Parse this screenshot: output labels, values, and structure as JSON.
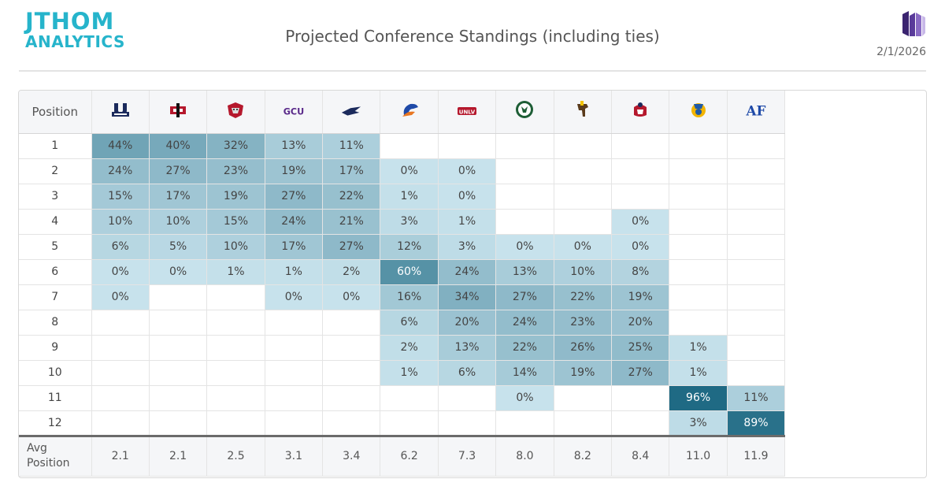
{
  "header": {
    "logo_line1": "JTHOM",
    "logo_line2": "ANALYTICS",
    "title": "Projected Conference Standings (including ties)",
    "date": "2/1/2026"
  },
  "table": {
    "position_header": "Position",
    "avg_label": "Avg Position",
    "teams": [
      {
        "icon": "utah-state-logo",
        "color": "#1b2a5c"
      },
      {
        "icon": "san-diego-state-logo",
        "color": "#b5182d"
      },
      {
        "icon": "new-mexico-logo",
        "color": "#b5182d"
      },
      {
        "icon": "gcu-logo",
        "color": "#5a2a8a"
      },
      {
        "icon": "nevada-logo",
        "color": "#1b2a5c"
      },
      {
        "icon": "boise-state-logo",
        "color": "#1f4aa8"
      },
      {
        "icon": "unlv-logo",
        "color": "#b5182d"
      },
      {
        "icon": "colorado-state-logo",
        "color": "#1e5e36"
      },
      {
        "icon": "wyoming-logo",
        "color": "#5a3b1b"
      },
      {
        "icon": "fresno-state-logo",
        "color": "#b5182d"
      },
      {
        "icon": "san-jose-state-logo",
        "color": "#1f5aa8"
      },
      {
        "icon": "air-force-logo",
        "color": "#1f4aa8"
      }
    ],
    "rows": [
      {
        "pos": "1",
        "cells": [
          "44%",
          "40%",
          "32%",
          "13%",
          "11%",
          "",
          "",
          "",
          "",
          "",
          "",
          ""
        ]
      },
      {
        "pos": "2",
        "cells": [
          "24%",
          "27%",
          "23%",
          "19%",
          "17%",
          "0%",
          "0%",
          "",
          "",
          "",
          "",
          ""
        ]
      },
      {
        "pos": "3",
        "cells": [
          "15%",
          "17%",
          "19%",
          "27%",
          "22%",
          "1%",
          "0%",
          "",
          "",
          "",
          "",
          ""
        ]
      },
      {
        "pos": "4",
        "cells": [
          "10%",
          "10%",
          "15%",
          "24%",
          "21%",
          "3%",
          "1%",
          "",
          "",
          "0%",
          "",
          ""
        ]
      },
      {
        "pos": "5",
        "cells": [
          "6%",
          "5%",
          "10%",
          "17%",
          "27%",
          "12%",
          "3%",
          "0%",
          "0%",
          "0%",
          "",
          ""
        ]
      },
      {
        "pos": "6",
        "cells": [
          "0%",
          "0%",
          "1%",
          "1%",
          "2%",
          "60%",
          "24%",
          "13%",
          "10%",
          "8%",
          "",
          ""
        ]
      },
      {
        "pos": "7",
        "cells": [
          "0%",
          "",
          "",
          "0%",
          "0%",
          "16%",
          "34%",
          "27%",
          "22%",
          "19%",
          "",
          ""
        ]
      },
      {
        "pos": "8",
        "cells": [
          "",
          "",
          "",
          "",
          "",
          "6%",
          "20%",
          "24%",
          "23%",
          "20%",
          "",
          ""
        ]
      },
      {
        "pos": "9",
        "cells": [
          "",
          "",
          "",
          "",
          "",
          "2%",
          "13%",
          "22%",
          "26%",
          "25%",
          "1%",
          ""
        ]
      },
      {
        "pos": "10",
        "cells": [
          "",
          "",
          "",
          "",
          "",
          "1%",
          "6%",
          "14%",
          "19%",
          "27%",
          "1%",
          ""
        ]
      },
      {
        "pos": "11",
        "cells": [
          "",
          "",
          "",
          "",
          "",
          "",
          "",
          "0%",
          "",
          "",
          "96%",
          "11%"
        ]
      },
      {
        "pos": "12",
        "cells": [
          "",
          "",
          "",
          "",
          "",
          "",
          "",
          "",
          "",
          "",
          "3%",
          "89%"
        ]
      }
    ],
    "avg": [
      "2.1",
      "2.1",
      "2.5",
      "3.1",
      "3.4",
      "6.2",
      "7.3",
      "8.0",
      "8.2",
      "8.4",
      "11.0",
      "11.9"
    ]
  },
  "colors": {
    "brand": "#26b4cb",
    "cell_light": "#c7e2ec",
    "cell_mid": "#8fb8c8",
    "cell_dark": "#1f6a84"
  }
}
